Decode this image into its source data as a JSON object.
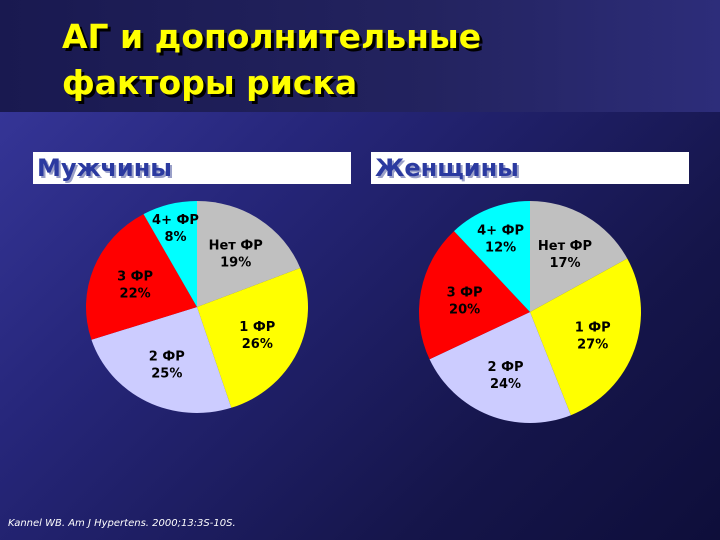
{
  "title": {
    "line1": "АГ и дополнительные",
    "line2": "факторы риска"
  },
  "source": "Kannel WB. Am J Hypertens. 2000;13:3S-10S.",
  "chart_data": [
    {
      "type": "pie",
      "title": "Мужчины",
      "slices": [
        {
          "label": "Нет ФР",
          "value": 19,
          "display": "19%",
          "color": "#c0c0c0"
        },
        {
          "label": "1 ФР",
          "value": 26,
          "display": "26%",
          "color": "#ffff00"
        },
        {
          "label": "2 ФР",
          "value": 25,
          "display": "25%",
          "color": "#ccccff"
        },
        {
          "label": "3 ФР",
          "value": 22,
          "display": "22%",
          "color": "#ff0000"
        },
        {
          "label": "4+ ФР",
          "value": 8,
          "display": "8%",
          "color": "#00ffff"
        }
      ]
    },
    {
      "type": "pie",
      "title": "Женщины",
      "slices": [
        {
          "label": "Нет ФР",
          "value": 17,
          "display": "17%",
          "color": "#c0c0c0"
        },
        {
          "label": "1 ФР",
          "value": 27,
          "display": "27%",
          "color": "#ffff00"
        },
        {
          "label": "2 ФР",
          "value": 24,
          "display": "24%",
          "color": "#ccccff"
        },
        {
          "label": "3 ФР",
          "value": 20,
          "display": "20%",
          "color": "#ff0000"
        },
        {
          "label": "4+ ФР",
          "value": 12,
          "display": "12%",
          "color": "#00ffff"
        }
      ]
    }
  ]
}
